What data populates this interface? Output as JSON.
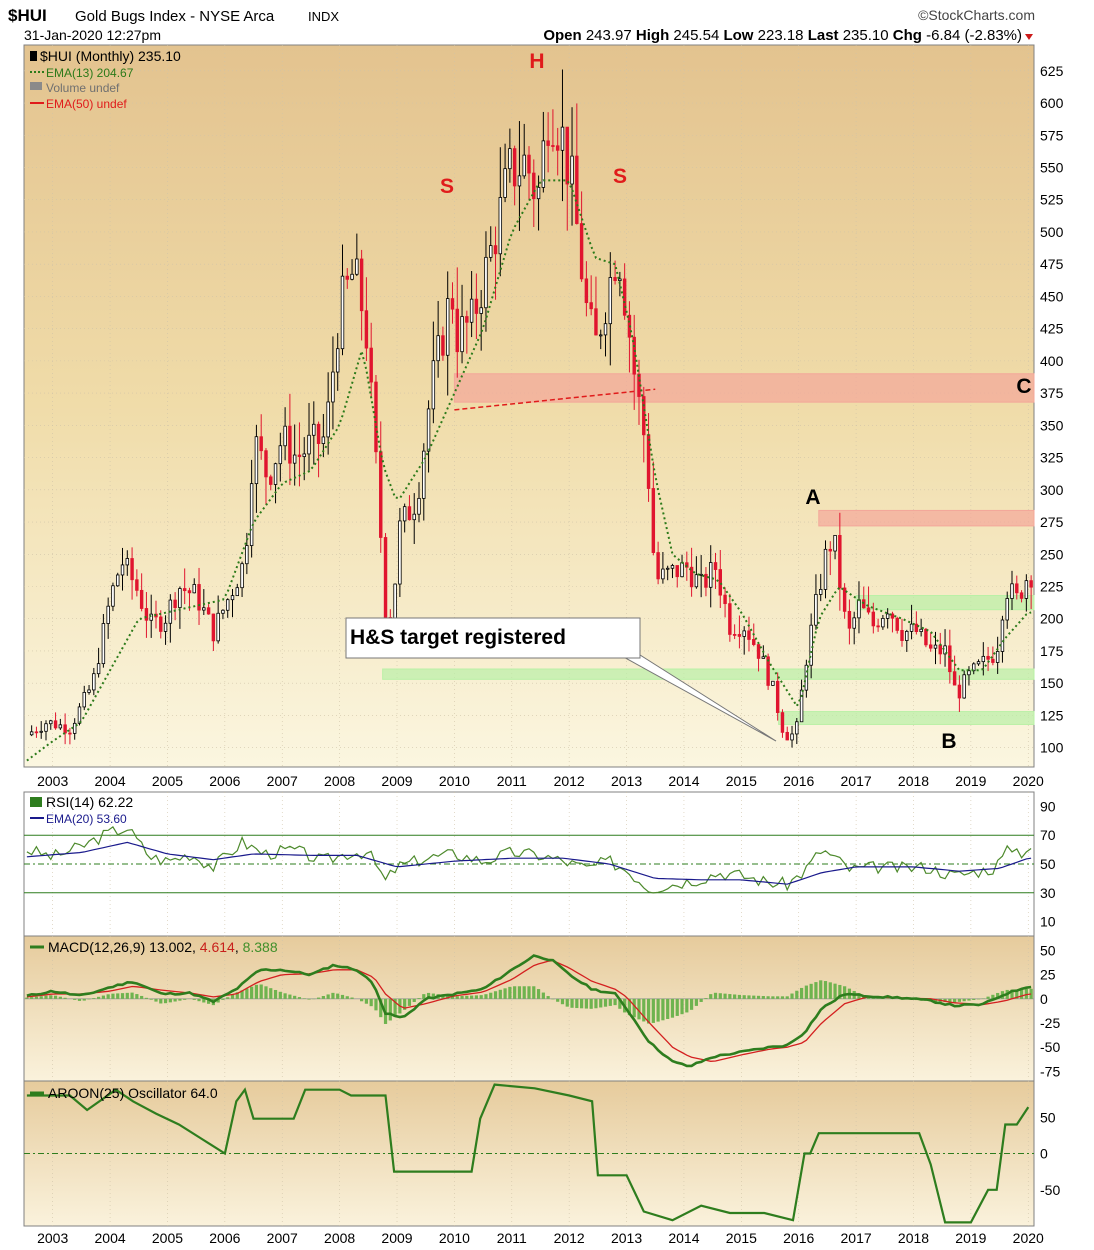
{
  "header": {
    "symbol": "$HUI",
    "name": "Gold Bugs Index - NYSE Arca",
    "exchange": "INDX",
    "date": "31-Jan-2020 12:27pm",
    "brand": "©StockCharts.com",
    "quote": {
      "open_label": "Open",
      "open": "243.97",
      "high_label": "High",
      "high": "245.54",
      "low_label": "Low",
      "low": "223.18",
      "last_label": "Last",
      "last": "235.10",
      "chg_label": "Chg",
      "chg": "-6.84 (-2.83%)"
    }
  },
  "legend": {
    "main": "$HUI (Monthly) 235.10",
    "ema13": "EMA(13) 204.67",
    "volume": "Volume undef",
    "ema50": "EMA(50) undef"
  },
  "annotations": {
    "h": "H",
    "s_left": "S",
    "s_right": "S",
    "a": "A",
    "b": "B",
    "c": "C",
    "callout": "H&S target registered"
  },
  "colors": {
    "up": "#000000",
    "down": "#e0152f",
    "ema13": "#2c7a1a",
    "zone_red": "#f3a79a",
    "zone_green": "#b9f0a6",
    "rsi": "#4d8a2c",
    "rsi_ema": "#1a1a8c",
    "macd": "#2e7d1e",
    "signal": "#d42020",
    "hist": "#6fb34f",
    "aroon": "#2e7d1e",
    "annotation": "#e01b1b"
  },
  "panels": {
    "rsi": {
      "label": "RSI(14) 62.22",
      "ema_label": "EMA(20) 53.60",
      "ticks": [
        "90",
        "70",
        "50",
        "30",
        "10"
      ]
    },
    "macd": {
      "label_prefix": "MACD(12,26,9)",
      "macd": "13.002",
      "signal": "4.614",
      "hist": "8.388",
      "ticks": [
        "50",
        "25",
        "0",
        "-25",
        "-50",
        "-75"
      ]
    },
    "aroon": {
      "label": "AROON(25) Oscillator 64.0",
      "ticks": [
        "50",
        "0",
        "-50"
      ]
    }
  },
  "chart_data": {
    "type": "candlestick",
    "title": "$HUI Gold Bugs Index - NYSE Arca INDX",
    "x_labels": [
      "2003",
      "2004",
      "2005",
      "2006",
      "2007",
      "2008",
      "2009",
      "2010",
      "2011",
      "2012",
      "2013",
      "2014",
      "2015",
      "2016",
      "2017",
      "2018",
      "2019",
      "2020"
    ],
    "y_ticks": [
      625,
      600,
      575,
      550,
      525,
      500,
      475,
      450,
      425,
      400,
      375,
      350,
      325,
      300,
      275,
      250,
      225,
      200,
      175,
      150,
      125,
      100
    ],
    "ylim": [
      85,
      645
    ],
    "xlim": [
      2002.5,
      2020.1
    ],
    "close_keypoints": [
      [
        2002.55,
        110
      ],
      [
        2002.9,
        120
      ],
      [
        2003.3,
        115
      ],
      [
        2003.7,
        150
      ],
      [
        2004.0,
        215
      ],
      [
        2004.2,
        245
      ],
      [
        2004.45,
        225
      ],
      [
        2004.7,
        195
      ],
      [
        2004.95,
        200
      ],
      [
        2005.2,
        225
      ],
      [
        2005.5,
        218
      ],
      [
        2005.8,
        190
      ],
      [
        2006.05,
        215
      ],
      [
        2006.35,
        245
      ],
      [
        2006.5,
        340
      ],
      [
        2006.75,
        310
      ],
      [
        2007.0,
        340
      ],
      [
        2007.25,
        325
      ],
      [
        2007.5,
        335
      ],
      [
        2007.75,
        340
      ],
      [
        2008.0,
        440
      ],
      [
        2008.25,
        470
      ],
      [
        2008.45,
        430
      ],
      [
        2008.65,
        310
      ],
      [
        2008.85,
        175
      ],
      [
        2009.05,
        270
      ],
      [
        2009.35,
        295
      ],
      [
        2009.6,
        380
      ],
      [
        2009.8,
        420
      ],
      [
        2009.95,
        455
      ],
      [
        2010.05,
        420
      ],
      [
        2010.3,
        430
      ],
      [
        2010.55,
        470
      ],
      [
        2010.75,
        505
      ],
      [
        2010.95,
        545
      ],
      [
        2011.25,
        555
      ],
      [
        2011.45,
        525
      ],
      [
        2011.65,
        600
      ],
      [
        2011.85,
        580
      ],
      [
        2012.05,
        535
      ],
      [
        2012.3,
        440
      ],
      [
        2012.45,
        410
      ],
      [
        2012.65,
        450
      ],
      [
        2012.85,
        490
      ],
      [
        2013.0,
        440
      ],
      [
        2013.15,
        385
      ],
      [
        2013.35,
        330
      ],
      [
        2013.5,
        230
      ],
      [
        2013.75,
        235
      ],
      [
        2014.05,
        240
      ],
      [
        2014.3,
        225
      ],
      [
        2014.55,
        240
      ],
      [
        2014.8,
        195
      ],
      [
        2015.05,
        195
      ],
      [
        2015.3,
        175
      ],
      [
        2015.55,
        145
      ],
      [
        2015.75,
        110
      ],
      [
        2015.95,
        110
      ],
      [
        2016.15,
        175
      ],
      [
        2016.45,
        245
      ],
      [
        2016.6,
        265
      ],
      [
        2016.85,
        185
      ],
      [
        2017.05,
        210
      ],
      [
        2017.3,
        195
      ],
      [
        2017.55,
        210
      ],
      [
        2017.8,
        190
      ],
      [
        2018.05,
        190
      ],
      [
        2018.3,
        175
      ],
      [
        2018.55,
        175
      ],
      [
        2018.75,
        140
      ],
      [
        2018.95,
        155
      ],
      [
        2019.2,
        165
      ],
      [
        2019.45,
        175
      ],
      [
        2019.6,
        225
      ],
      [
        2019.8,
        215
      ],
      [
        2020.0,
        235
      ]
    ],
    "ema13_keypoints": [
      [
        2002.55,
        90
      ],
      [
        2003.0,
        105
      ],
      [
        2003.5,
        120
      ],
      [
        2004.0,
        160
      ],
      [
        2004.5,
        200
      ],
      [
        2005.0,
        205
      ],
      [
        2005.5,
        210
      ],
      [
        2006.0,
        215
      ],
      [
        2006.5,
        275
      ],
      [
        2007.0,
        305
      ],
      [
        2007.5,
        315
      ],
      [
        2008.0,
        350
      ],
      [
        2008.4,
        410
      ],
      [
        2008.75,
        320
      ],
      [
        2009.0,
        290
      ],
      [
        2009.5,
        325
      ],
      [
        2010.0,
        375
      ],
      [
        2010.5,
        425
      ],
      [
        2011.0,
        500
      ],
      [
        2011.5,
        540
      ],
      [
        2012.0,
        540
      ],
      [
        2012.45,
        480
      ],
      [
        2012.8,
        475
      ],
      [
        2013.1,
        420
      ],
      [
        2013.5,
        310
      ],
      [
        2013.8,
        250
      ],
      [
        2014.2,
        235
      ],
      [
        2014.6,
        230
      ],
      [
        2015.0,
        205
      ],
      [
        2015.5,
        165
      ],
      [
        2016.0,
        130
      ],
      [
        2016.35,
        200
      ],
      [
        2016.7,
        225
      ],
      [
        2017.2,
        210
      ],
      [
        2017.8,
        200
      ],
      [
        2018.3,
        190
      ],
      [
        2018.8,
        160
      ],
      [
        2019.2,
        160
      ],
      [
        2019.6,
        185
      ],
      [
        2020.0,
        205
      ]
    ],
    "zones": [
      {
        "color": "red",
        "y": [
          368,
          390
        ],
        "x": [
          2010.0,
          2020.1
        ],
        "label": "C"
      },
      {
        "color": "red",
        "y": [
          272,
          284
        ],
        "x": [
          2016.35,
          2020.1
        ],
        "label": "A"
      },
      {
        "color": "green",
        "y": [
          207,
          218
        ],
        "x": [
          2017.0,
          2020.1
        ]
      },
      {
        "color": "green",
        "y": [
          153,
          161
        ],
        "x": [
          2008.75,
          2020.1
        ]
      },
      {
        "color": "green",
        "y": [
          118,
          128
        ],
        "x": [
          2015.65,
          2020.1
        ]
      }
    ],
    "neckline": [
      [
        2010.0,
        362
      ],
      [
        2013.5,
        378
      ]
    ],
    "rsi": {
      "ylim": [
        0,
        100
      ],
      "ticks": [
        90,
        70,
        50,
        30,
        10
      ],
      "rsi_keypoints": [
        [
          2002.55,
          60
        ],
        [
          2003.0,
          55
        ],
        [
          2003.5,
          62
        ],
        [
          2004.0,
          72
        ],
        [
          2004.3,
          75
        ],
        [
          2004.7,
          55
        ],
        [
          2005.0,
          52
        ],
        [
          2005.4,
          57
        ],
        [
          2005.8,
          48
        ],
        [
          2006.3,
          65
        ],
        [
          2006.7,
          57
        ],
        [
          2007.2,
          60
        ],
        [
          2007.7,
          52
        ],
        [
          2008.2,
          58
        ],
        [
          2008.5,
          58
        ],
        [
          2008.8,
          38
        ],
        [
          2009.0,
          48
        ],
        [
          2009.5,
          54
        ],
        [
          2010.0,
          57
        ],
        [
          2010.5,
          52
        ],
        [
          2011.0,
          58
        ],
        [
          2011.5,
          56
        ],
        [
          2011.9,
          52
        ],
        [
          2012.3,
          47
        ],
        [
          2012.7,
          52
        ],
        [
          2013.0,
          46
        ],
        [
          2013.4,
          33
        ],
        [
          2013.8,
          36
        ],
        [
          2014.3,
          40
        ],
        [
          2014.6,
          44
        ],
        [
          2015.0,
          42
        ],
        [
          2015.5,
          37
        ],
        [
          2015.8,
          36
        ],
        [
          2016.1,
          45
        ],
        [
          2016.4,
          60
        ],
        [
          2016.6,
          55
        ],
        [
          2016.9,
          46
        ],
        [
          2017.4,
          48
        ],
        [
          2017.8,
          47
        ],
        [
          2018.2,
          48
        ],
        [
          2018.7,
          42
        ],
        [
          2019.0,
          44
        ],
        [
          2019.4,
          47
        ],
        [
          2019.7,
          62
        ],
        [
          2019.9,
          58
        ],
        [
          2020.0,
          62
        ]
      ],
      "ema_keypoints": [
        [
          2002.55,
          55
        ],
        [
          2003.5,
          58
        ],
        [
          2004.3,
          65
        ],
        [
          2005.0,
          57
        ],
        [
          2005.8,
          53
        ],
        [
          2006.5,
          57
        ],
        [
          2007.5,
          56
        ],
        [
          2008.3,
          56
        ],
        [
          2009.0,
          48
        ],
        [
          2010.0,
          52
        ],
        [
          2011.0,
          54
        ],
        [
          2011.9,
          54
        ],
        [
          2012.7,
          50
        ],
        [
          2013.5,
          40
        ],
        [
          2014.3,
          39
        ],
        [
          2015.0,
          39
        ],
        [
          2015.8,
          36
        ],
        [
          2016.4,
          44
        ],
        [
          2017.0,
          48
        ],
        [
          2018.0,
          48
        ],
        [
          2018.8,
          45
        ],
        [
          2019.5,
          47
        ],
        [
          2020.0,
          54
        ]
      ]
    },
    "macd": {
      "ylim": [
        -85,
        65
      ],
      "ticks": [
        50,
        25,
        0,
        -25,
        -50,
        -75
      ],
      "macd_keypoints": [
        [
          2002.55,
          3
        ],
        [
          2003.0,
          8
        ],
        [
          2003.5,
          3
        ],
        [
          2004.0,
          12
        ],
        [
          2004.4,
          18
        ],
        [
          2004.9,
          5
        ],
        [
          2005.4,
          6
        ],
        [
          2005.8,
          -3
        ],
        [
          2006.2,
          10
        ],
        [
          2006.6,
          30
        ],
        [
          2007.0,
          30
        ],
        [
          2007.5,
          25
        ],
        [
          2007.9,
          35
        ],
        [
          2008.3,
          30
        ],
        [
          2008.6,
          15
        ],
        [
          2008.8,
          -15
        ],
        [
          2009.1,
          -20
        ],
        [
          2009.5,
          0
        ],
        [
          2010.0,
          5
        ],
        [
          2010.5,
          10
        ],
        [
          2011.0,
          30
        ],
        [
          2011.4,
          45
        ],
        [
          2011.7,
          40
        ],
        [
          2012.0,
          25
        ],
        [
          2012.4,
          10
        ],
        [
          2012.8,
          5
        ],
        [
          2013.0,
          -10
        ],
        [
          2013.4,
          -45
        ],
        [
          2013.8,
          -65
        ],
        [
          2014.1,
          -70
        ],
        [
          2014.5,
          -60
        ],
        [
          2015.0,
          -55
        ],
        [
          2015.5,
          -50
        ],
        [
          2015.8,
          -48
        ],
        [
          2016.1,
          -35
        ],
        [
          2016.4,
          -10
        ],
        [
          2016.8,
          5
        ],
        [
          2017.2,
          3
        ],
        [
          2017.8,
          1
        ],
        [
          2018.3,
          -2
        ],
        [
          2018.7,
          -7
        ],
        [
          2019.2,
          -6
        ],
        [
          2019.6,
          5
        ],
        [
          2020.0,
          13
        ]
      ],
      "signal_keypoints": [
        [
          2002.55,
          2
        ],
        [
          2003.0,
          5
        ],
        [
          2003.5,
          5
        ],
        [
          2004.0,
          8
        ],
        [
          2004.4,
          13
        ],
        [
          2004.9,
          9
        ],
        [
          2005.4,
          6
        ],
        [
          2005.8,
          2
        ],
        [
          2006.2,
          5
        ],
        [
          2006.6,
          18
        ],
        [
          2007.0,
          25
        ],
        [
          2007.5,
          26
        ],
        [
          2007.9,
          30
        ],
        [
          2008.3,
          30
        ],
        [
          2008.6,
          22
        ],
        [
          2008.8,
          5
        ],
        [
          2009.1,
          -10
        ],
        [
          2009.5,
          -5
        ],
        [
          2010.0,
          3
        ],
        [
          2010.5,
          7
        ],
        [
          2011.0,
          20
        ],
        [
          2011.4,
          35
        ],
        [
          2011.7,
          40
        ],
        [
          2012.0,
          32
        ],
        [
          2012.4,
          18
        ],
        [
          2012.8,
          10
        ],
        [
          2013.0,
          2
        ],
        [
          2013.4,
          -25
        ],
        [
          2013.8,
          -50
        ],
        [
          2014.1,
          -60
        ],
        [
          2014.5,
          -65
        ],
        [
          2015.0,
          -58
        ],
        [
          2015.5,
          -52
        ],
        [
          2015.8,
          -50
        ],
        [
          2016.1,
          -45
        ],
        [
          2016.4,
          -25
        ],
        [
          2016.8,
          -5
        ],
        [
          2017.2,
          2
        ],
        [
          2017.8,
          1
        ],
        [
          2018.3,
          0
        ],
        [
          2018.7,
          -4
        ],
        [
          2019.2,
          -6
        ],
        [
          2019.6,
          -2
        ],
        [
          2020.0,
          5
        ]
      ]
    },
    "aroon": {
      "ylim": [
        -100,
        100
      ],
      "ticks": [
        50,
        0,
        -50
      ],
      "keypoints": [
        [
          2002.55,
          80
        ],
        [
          2003.3,
          80
        ],
        [
          2003.6,
          60
        ],
        [
          2004.1,
          88
        ],
        [
          2004.4,
          72
        ],
        [
          2004.8,
          55
        ],
        [
          2005.2,
          40
        ],
        [
          2005.6,
          20
        ],
        [
          2006.0,
          0
        ],
        [
          2006.2,
          72
        ],
        [
          2006.35,
          88
        ],
        [
          2006.5,
          48
        ],
        [
          2007.2,
          48
        ],
        [
          2007.4,
          88
        ],
        [
          2008.0,
          88
        ],
        [
          2008.2,
          80
        ],
        [
          2008.8,
          80
        ],
        [
          2008.95,
          -25
        ],
        [
          2010.3,
          -25
        ],
        [
          2010.45,
          48
        ],
        [
          2010.7,
          95
        ],
        [
          2011.4,
          90
        ],
        [
          2012.0,
          80
        ],
        [
          2012.4,
          72
        ],
        [
          2012.5,
          -30
        ],
        [
          2013.0,
          -30
        ],
        [
          2013.3,
          -80
        ],
        [
          2013.8,
          -92
        ],
        [
          2014.3,
          -72
        ],
        [
          2014.8,
          -82
        ],
        [
          2015.4,
          -82
        ],
        [
          2015.9,
          -92
        ],
        [
          2016.1,
          0
        ],
        [
          2016.2,
          0
        ],
        [
          2016.35,
          28
        ],
        [
          2018.1,
          28
        ],
        [
          2018.3,
          -15
        ],
        [
          2018.55,
          -95
        ],
        [
          2019.0,
          -95
        ],
        [
          2019.3,
          -50
        ],
        [
          2019.45,
          -50
        ],
        [
          2019.6,
          40
        ],
        [
          2019.8,
          40
        ],
        [
          2020.0,
          64
        ]
      ]
    }
  }
}
